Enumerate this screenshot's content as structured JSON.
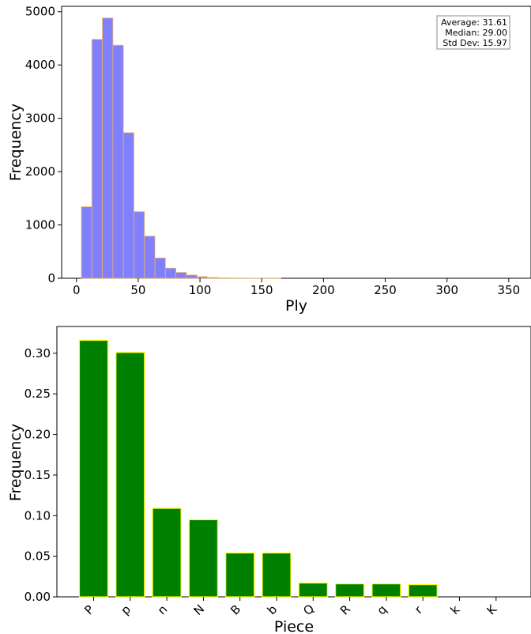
{
  "chart_data": [
    {
      "type": "bar",
      "subtype": "histogram",
      "xlabel": "Ply",
      "ylabel": "Frequency",
      "xlim": [
        -12,
        368
      ],
      "ylim": [
        0,
        5100
      ],
      "xticks": [
        0,
        50,
        100,
        150,
        200,
        250,
        300,
        350
      ],
      "yticks": [
        0,
        1000,
        2000,
        3000,
        4000,
        5000
      ],
      "bin_width": 8.5,
      "bins": [
        {
          "start": 4.0,
          "value": 1340
        },
        {
          "start": 12.5,
          "value": 4480
        },
        {
          "start": 21.0,
          "value": 4880
        },
        {
          "start": 29.5,
          "value": 4370
        },
        {
          "start": 38.0,
          "value": 2730
        },
        {
          "start": 46.5,
          "value": 1250
        },
        {
          "start": 55.0,
          "value": 790
        },
        {
          "start": 63.5,
          "value": 380
        },
        {
          "start": 72.0,
          "value": 190
        },
        {
          "start": 80.5,
          "value": 110
        },
        {
          "start": 89.0,
          "value": 60
        },
        {
          "start": 97.5,
          "value": 30
        },
        {
          "start": 106.0,
          "value": 15
        },
        {
          "start": 114.5,
          "value": 8
        },
        {
          "start": 123.0,
          "value": 5
        },
        {
          "start": 131.5,
          "value": 3
        },
        {
          "start": 140.0,
          "value": 2
        },
        {
          "start": 148.5,
          "value": 1
        },
        {
          "start": 157.0,
          "value": 1
        }
      ],
      "bar_color": "#8080ff",
      "edge_color": "#f0b060",
      "stats": {
        "average": "Average: 31.61",
        "median": "Median: 29.00",
        "std_dev": "Std Dev: 15.97"
      }
    },
    {
      "type": "bar",
      "xlabel": "Piece",
      "ylabel": "Frequency",
      "ylim": [
        0,
        0.333
      ],
      "yticks": [
        "0.00",
        "0.05",
        "0.10",
        "0.15",
        "0.20",
        "0.25",
        "0.30"
      ],
      "categories": [
        "P",
        "p",
        "n",
        "N",
        "B",
        "b",
        "Q",
        "R",
        "q",
        "r",
        "k",
        "K"
      ],
      "values": [
        0.316,
        0.301,
        0.109,
        0.095,
        0.054,
        0.054,
        0.017,
        0.016,
        0.016,
        0.015,
        0.0,
        0.0
      ],
      "bar_color": "#008000",
      "edge_color": "#ffff00"
    }
  ]
}
